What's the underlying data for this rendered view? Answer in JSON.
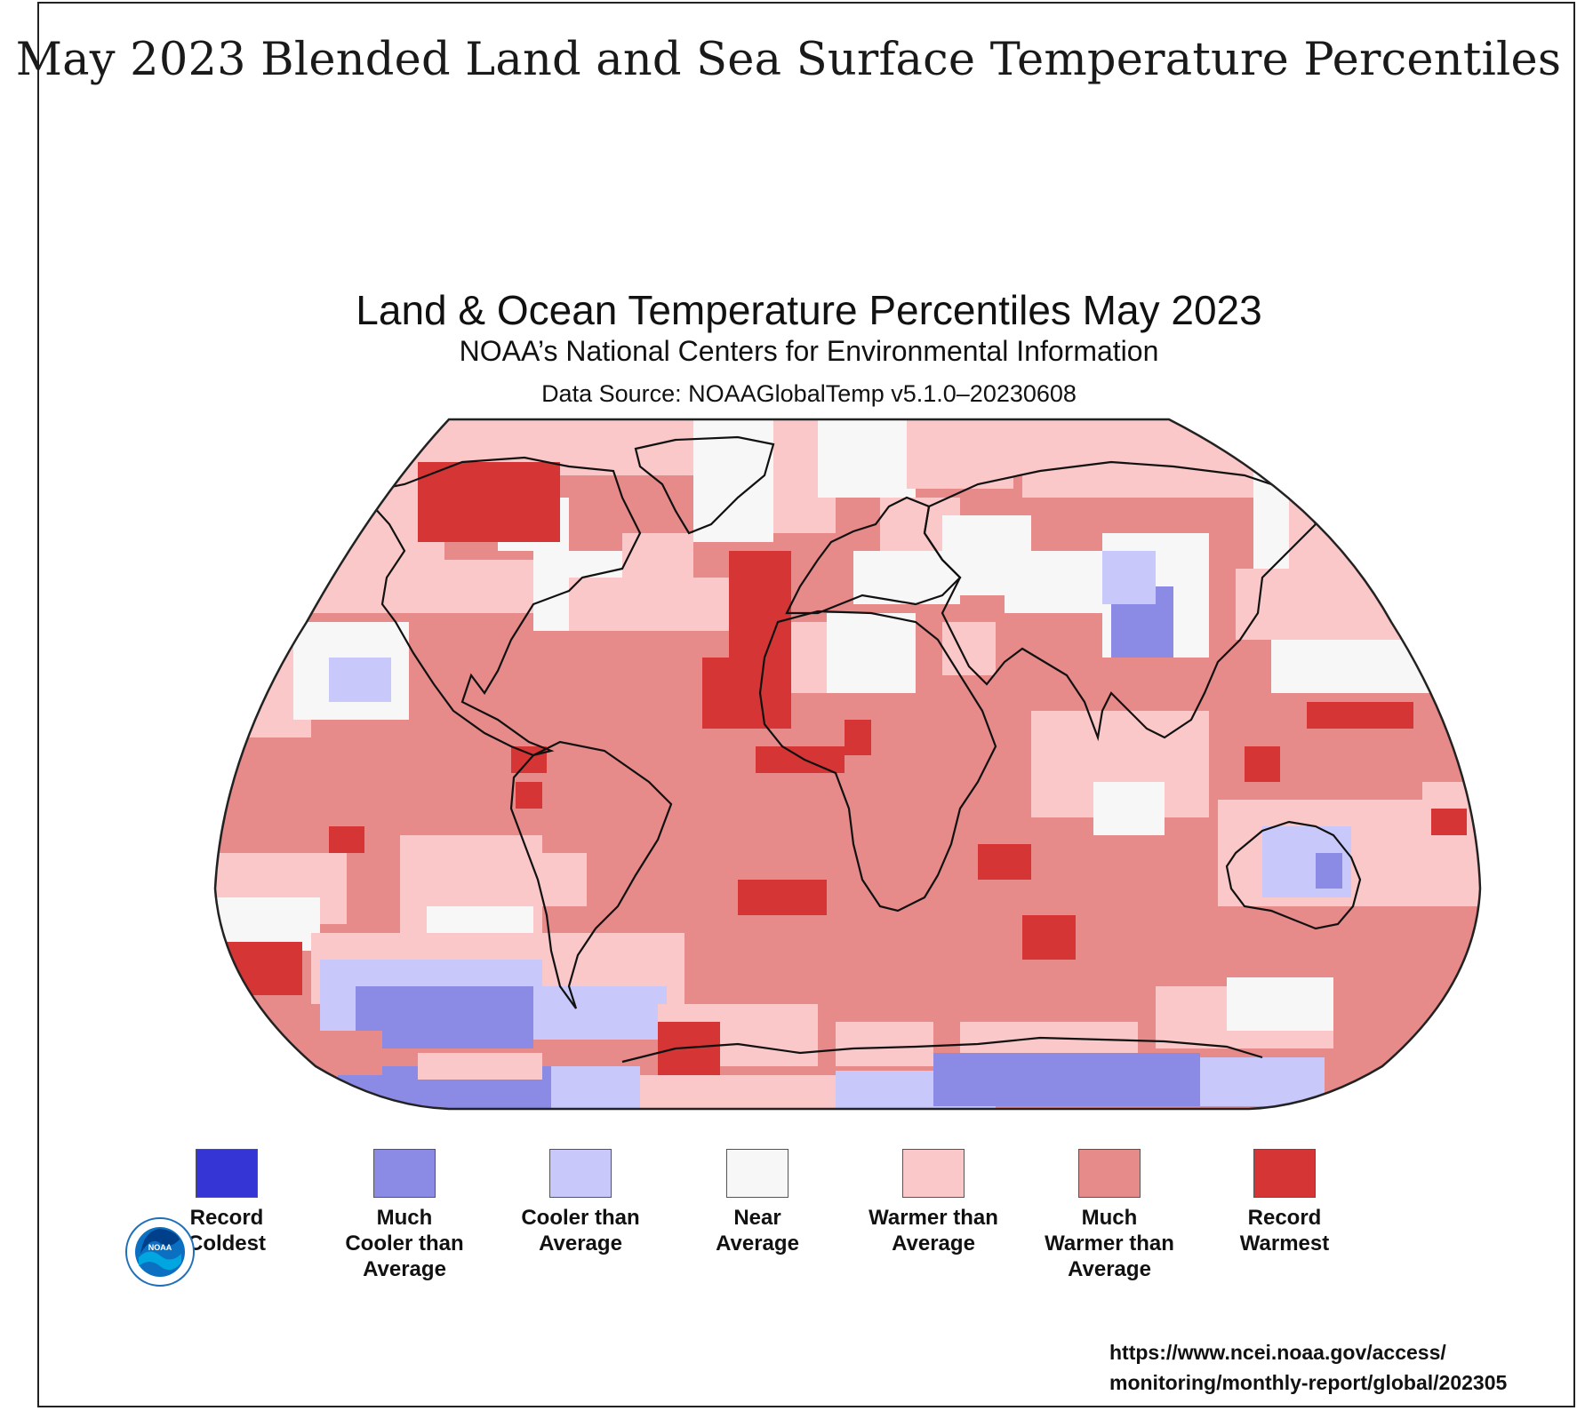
{
  "headline": "May 2023 Blended Land and Sea Surface Temperature Percentiles",
  "map": {
    "title": "Land & Ocean Temperature Percentiles May 2023",
    "subtitle": "NOAA’s National Centers for Environmental Information",
    "source": "Data Source: NOAAGlobalTemp v5.1.0–20230608"
  },
  "legend": [
    {
      "label": "Record\nColdest",
      "color": "#3535d6"
    },
    {
      "label": "Much\nCooler than\nAverage",
      "color": "#8b8be6"
    },
    {
      "label": "Cooler than\nAverage",
      "color": "#c8c8fa"
    },
    {
      "label": "Near\nAverage",
      "color": "#f7f7f7"
    },
    {
      "label": "Warmer than\nAverage",
      "color": "#fac8c8"
    },
    {
      "label": "Much\nWarmer than\nAverage",
      "color": "#e68a8a"
    },
    {
      "label": "Record\nWarmest",
      "color": "#d63535"
    }
  ],
  "logo": {
    "icon": "noaa-logo",
    "text": "NOAA"
  },
  "url": "https://www.ncei.noaa.gov/access/\nmonitoring/monthly-report/global/202305"
}
